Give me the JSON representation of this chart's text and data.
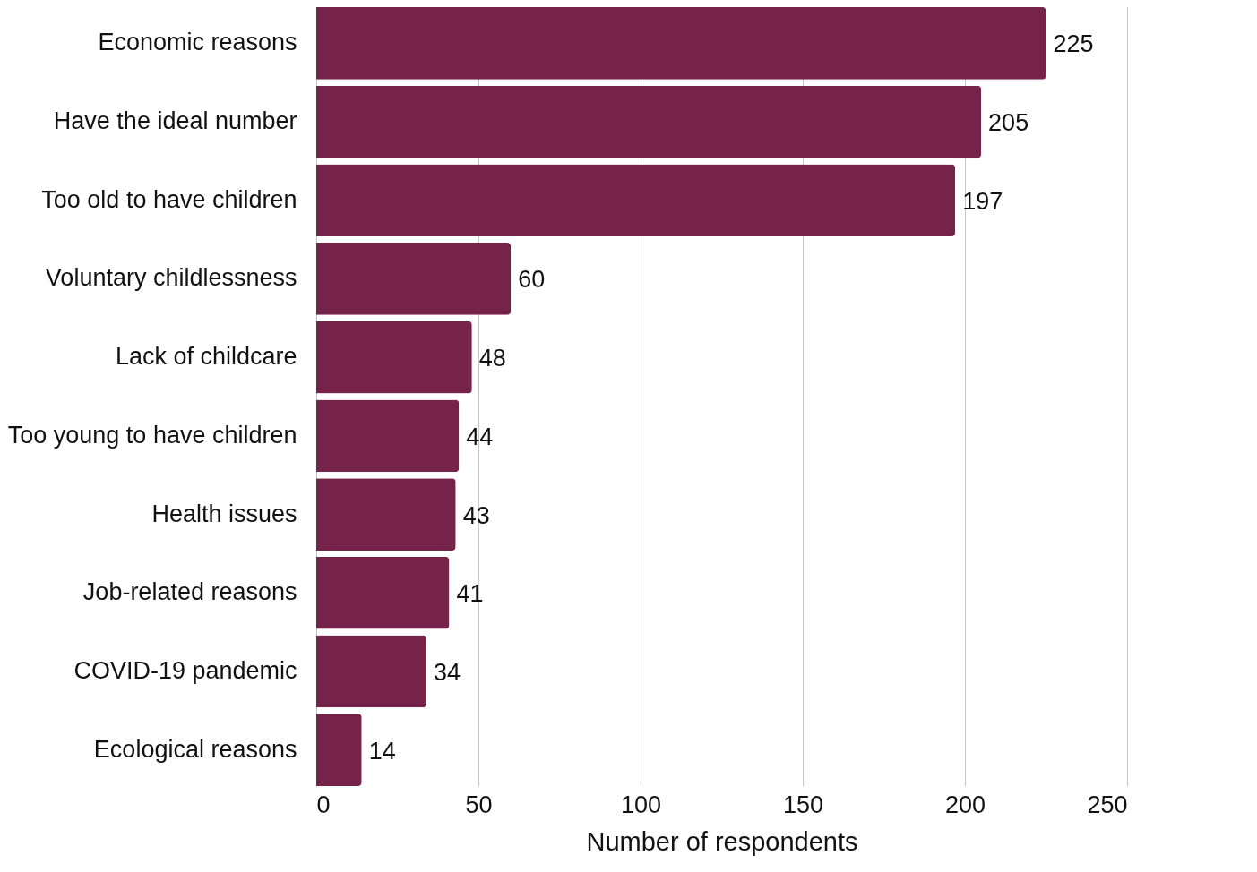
{
  "chart_data": {
    "type": "bar",
    "orientation": "horizontal",
    "xlabel": "Number of respondents",
    "categories": [
      "Economic reasons",
      "Have the ideal number",
      "Too old to have children",
      "Voluntary childlessness",
      "Lack of childcare",
      "Too young to have children",
      "Health issues",
      "Job-related reasons",
      "COVID-19 pandemic",
      "Ecological reasons"
    ],
    "values": [
      225,
      205,
      197,
      60,
      48,
      44,
      43,
      41,
      34,
      14
    ],
    "color": "#75234a",
    "xlim": [
      0,
      250
    ],
    "xticks": [
      0,
      50,
      100,
      150,
      200,
      250
    ],
    "grid": "x",
    "data_labels": true
  }
}
